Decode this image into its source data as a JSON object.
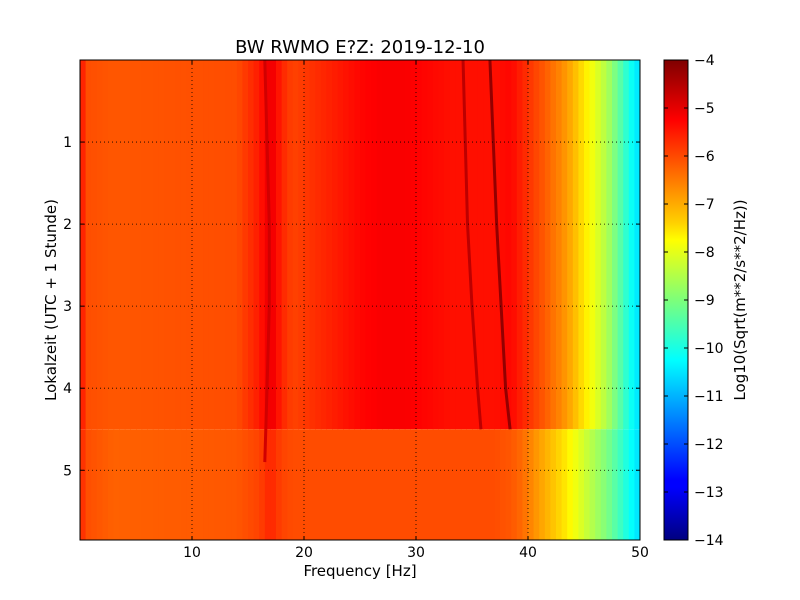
{
  "chart_data": {
    "type": "heatmap",
    "title": "BW RWMO E?Z: 2019-12-10",
    "xlabel": "Frequency [Hz]",
    "ylabel": "Lokalzeit (UTC + 1 Stunde)",
    "xlim": [
      0,
      50
    ],
    "ylim": [
      5.85,
      0
    ],
    "x_ticks": [
      10,
      20,
      30,
      40,
      50
    ],
    "x_tick_labels": [
      "10",
      "20",
      "30",
      "40",
      "50"
    ],
    "y_ticks": [
      1,
      2,
      3,
      4,
      5
    ],
    "y_tick_labels": [
      "1",
      "2",
      "3",
      "4",
      "5"
    ],
    "grid": "dotted",
    "colormap": "jet",
    "colorbar": {
      "label": "Log10(Sqrt(m**2/s**2/Hz))",
      "range": [
        -14,
        -4
      ],
      "ticks": [
        -4,
        -5,
        -6,
        -7,
        -8,
        -9,
        -10,
        -11,
        -12,
        -13,
        -14
      ],
      "tick_labels": [
        "−4",
        "−5",
        "−6",
        "−7",
        "−8",
        "−9",
        "−10",
        "−11",
        "−12",
        "−13",
        "−14"
      ]
    },
    "level_vs_frequency": {
      "frequency_hz": [
        0,
        0.5,
        3,
        14,
        16,
        17,
        18,
        19,
        23,
        25,
        27,
        29,
        31,
        33,
        35,
        37,
        38.5,
        39.5,
        41,
        42,
        43,
        44,
        45,
        46,
        47,
        48,
        49,
        50
      ],
      "before_4_5h": [
        -5.2,
        -6.0,
        -6.1,
        -6.0,
        -5.5,
        -5.0,
        -5.6,
        -5.9,
        -5.5,
        -5.3,
        -5.2,
        -5.2,
        -5.3,
        -5.4,
        -5.4,
        -5.4,
        -5.3,
        -5.6,
        -6.0,
        -6.3,
        -6.6,
        -7.0,
        -7.5,
        -8.0,
        -8.5,
        -9.2,
        -10.0,
        -10.6
      ],
      "after_4_5h": [
        -5.5,
        -6.0,
        -6.2,
        -6.1,
        -5.9,
        -5.6,
        -5.9,
        -6.0,
        -6.0,
        -6.0,
        -6.0,
        -6.0,
        -6.0,
        -6.0,
        -6.0,
        -6.0,
        -6.1,
        -6.3,
        -6.8,
        -7.1,
        -7.4,
        -7.8,
        -8.2,
        -8.6,
        -9.0,
        -9.5,
        -10.1,
        -10.6
      ],
      "change_time_h": 4.5
    },
    "spectral_lines": [
      {
        "times_h": [
          0,
          1,
          2,
          3,
          4,
          4.9
        ],
        "frequency_hz": [
          16.5,
          16.7,
          16.9,
          16.9,
          16.7,
          16.5
        ],
        "level": -4.8
      },
      {
        "times_h": [
          0,
          1,
          2,
          3,
          4,
          4.5
        ],
        "frequency_hz": [
          34.2,
          34.4,
          34.6,
          35.0,
          35.5,
          35.8
        ],
        "level": -4.6
      },
      {
        "times_h": [
          0,
          1,
          2,
          3,
          4,
          4.5
        ],
        "frequency_hz": [
          36.6,
          36.9,
          37.2,
          37.6,
          38.0,
          38.4
        ],
        "level": -4.2
      }
    ]
  }
}
